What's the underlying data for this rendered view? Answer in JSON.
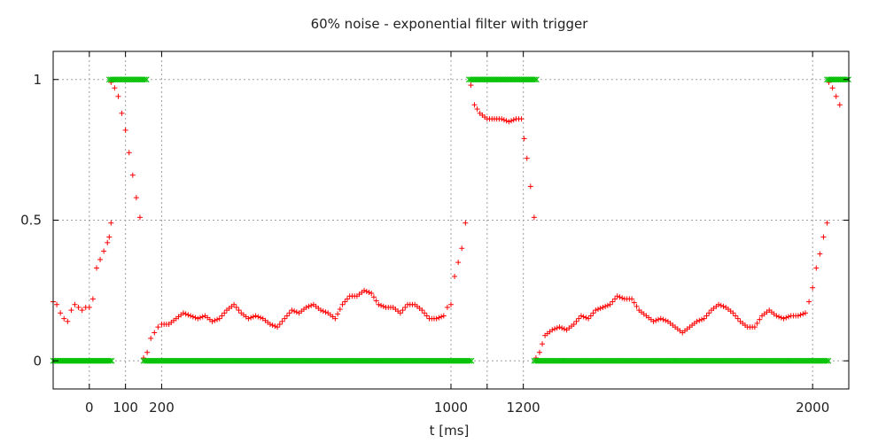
{
  "chart_data": {
    "type": "scatter",
    "title": "60% noise - exponential filter with trigger",
    "xlabel": "t [ms]",
    "ylabel": "",
    "xlim": [
      -100,
      2100
    ],
    "ylim": [
      -0.1,
      1.1
    ],
    "grid": true,
    "x_ticks": [
      {
        "value": 0,
        "label": "0"
      },
      {
        "value": 100,
        "label": "100"
      },
      {
        "value": 200,
        "label": "200"
      },
      {
        "value": 1000,
        "label": "1000"
      },
      {
        "value": 1100,
        "label": ""
      },
      {
        "value": 1200,
        "label": "1200"
      },
      {
        "value": 2000,
        "label": "2000"
      }
    ],
    "y_ticks": [
      {
        "value": 0,
        "label": "0"
      },
      {
        "value": 0.5,
        "label": "0.5"
      },
      {
        "value": 1,
        "label": "1"
      }
    ],
    "series": [
      {
        "color": "#ff0000",
        "marker": "plus",
        "points": [
          [
            -100,
            0.21
          ],
          [
            -90,
            0.2
          ],
          [
            -80,
            0.17
          ],
          [
            -70,
            0.15
          ],
          [
            -60,
            0.14
          ],
          [
            -50,
            0.18
          ],
          [
            -40,
            0.2
          ],
          [
            -30,
            0.19
          ],
          [
            -20,
            0.18
          ],
          [
            -10,
            0.19
          ],
          [
            0,
            0.19
          ],
          [
            10,
            0.22
          ],
          [
            20,
            0.33
          ],
          [
            30,
            0.36
          ],
          [
            40,
            0.39
          ],
          [
            50,
            0.42
          ],
          [
            55,
            0.44
          ],
          [
            60,
            0.49
          ],
          [
            60,
            0.99
          ],
          [
            70,
            0.97
          ],
          [
            80,
            0.94
          ],
          [
            90,
            0.88
          ],
          [
            100,
            0.82
          ],
          [
            110,
            0.74
          ],
          [
            120,
            0.66
          ],
          [
            130,
            0.58
          ],
          [
            140,
            0.51
          ],
          [
            150,
            0.01
          ],
          [
            160,
            0.03
          ],
          [
            170,
            0.08
          ],
          [
            180,
            0.1
          ],
          [
            190,
            0.12
          ],
          [
            200,
            0.13
          ],
          [
            220,
            0.13
          ],
          [
            240,
            0.15
          ],
          [
            260,
            0.17
          ],
          [
            280,
            0.16
          ],
          [
            300,
            0.15
          ],
          [
            320,
            0.16
          ],
          [
            340,
            0.14
          ],
          [
            360,
            0.15
          ],
          [
            380,
            0.18
          ],
          [
            400,
            0.2
          ],
          [
            420,
            0.17
          ],
          [
            440,
            0.15
          ],
          [
            460,
            0.16
          ],
          [
            480,
            0.15
          ],
          [
            500,
            0.13
          ],
          [
            520,
            0.12
          ],
          [
            540,
            0.15
          ],
          [
            560,
            0.18
          ],
          [
            580,
            0.17
          ],
          [
            600,
            0.19
          ],
          [
            620,
            0.2
          ],
          [
            640,
            0.18
          ],
          [
            660,
            0.17
          ],
          [
            680,
            0.15
          ],
          [
            700,
            0.2
          ],
          [
            720,
            0.23
          ],
          [
            740,
            0.23
          ],
          [
            760,
            0.25
          ],
          [
            780,
            0.24
          ],
          [
            800,
            0.2
          ],
          [
            820,
            0.19
          ],
          [
            840,
            0.19
          ],
          [
            860,
            0.17
          ],
          [
            880,
            0.2
          ],
          [
            900,
            0.2
          ],
          [
            920,
            0.18
          ],
          [
            940,
            0.15
          ],
          [
            960,
            0.15
          ],
          [
            980,
            0.16
          ],
          [
            990,
            0.19
          ],
          [
            1000,
            0.2
          ],
          [
            1010,
            0.3
          ],
          [
            1020,
            0.35
          ],
          [
            1030,
            0.4
          ],
          [
            1040,
            0.49
          ],
          [
            1055,
            0.98
          ],
          [
            1065,
            0.91
          ],
          [
            1080,
            0.88
          ],
          [
            1100,
            0.86
          ],
          [
            1120,
            0.86
          ],
          [
            1140,
            0.86
          ],
          [
            1160,
            0.85
          ],
          [
            1180,
            0.86
          ],
          [
            1195,
            0.86
          ],
          [
            1210,
            0.72
          ],
          [
            1220,
            0.62
          ],
          [
            1230,
            0.51
          ],
          [
            1235,
            0.01
          ],
          [
            1245,
            0.03
          ],
          [
            1260,
            0.09
          ],
          [
            1280,
            0.11
          ],
          [
            1300,
            0.12
          ],
          [
            1320,
            0.11
          ],
          [
            1340,
            0.13
          ],
          [
            1360,
            0.16
          ],
          [
            1380,
            0.15
          ],
          [
            1400,
            0.18
          ],
          [
            1420,
            0.19
          ],
          [
            1440,
            0.2
          ],
          [
            1460,
            0.23
          ],
          [
            1480,
            0.22
          ],
          [
            1500,
            0.22
          ],
          [
            1520,
            0.18
          ],
          [
            1540,
            0.16
          ],
          [
            1560,
            0.14
          ],
          [
            1580,
            0.15
          ],
          [
            1600,
            0.14
          ],
          [
            1620,
            0.12
          ],
          [
            1640,
            0.1
          ],
          [
            1660,
            0.12
          ],
          [
            1680,
            0.14
          ],
          [
            1700,
            0.15
          ],
          [
            1720,
            0.18
          ],
          [
            1740,
            0.2
          ],
          [
            1760,
            0.19
          ],
          [
            1780,
            0.17
          ],
          [
            1800,
            0.14
          ],
          [
            1820,
            0.12
          ],
          [
            1840,
            0.12
          ],
          [
            1860,
            0.16
          ],
          [
            1880,
            0.18
          ],
          [
            1900,
            0.16
          ],
          [
            1920,
            0.15
          ],
          [
            1940,
            0.16
          ],
          [
            1960,
            0.16
          ],
          [
            1980,
            0.17
          ],
          [
            1990,
            0.21
          ],
          [
            2000,
            0.26
          ],
          [
            2010,
            0.33
          ],
          [
            2020,
            0.38
          ],
          [
            2030,
            0.44
          ],
          [
            2040,
            0.49
          ],
          [
            2045,
            0.99
          ],
          [
            2055,
            0.97
          ],
          [
            2065,
            0.94
          ],
          [
            2075,
            0.91
          ]
        ]
      },
      {
        "color": "#00c000",
        "marker": "x",
        "segments": [
          {
            "x": [
              -100,
              65
            ],
            "y": 0
          },
          {
            "x": [
              55,
              160
            ],
            "y": 1
          },
          {
            "x": [
              150,
              1060
            ],
            "y": 0
          },
          {
            "x": [
              1050,
              1240
            ],
            "y": 1
          },
          {
            "x": [
              1230,
              2045
            ],
            "y": 0
          },
          {
            "x": [
              2040,
              2100
            ],
            "y": 1
          }
        ]
      }
    ]
  }
}
